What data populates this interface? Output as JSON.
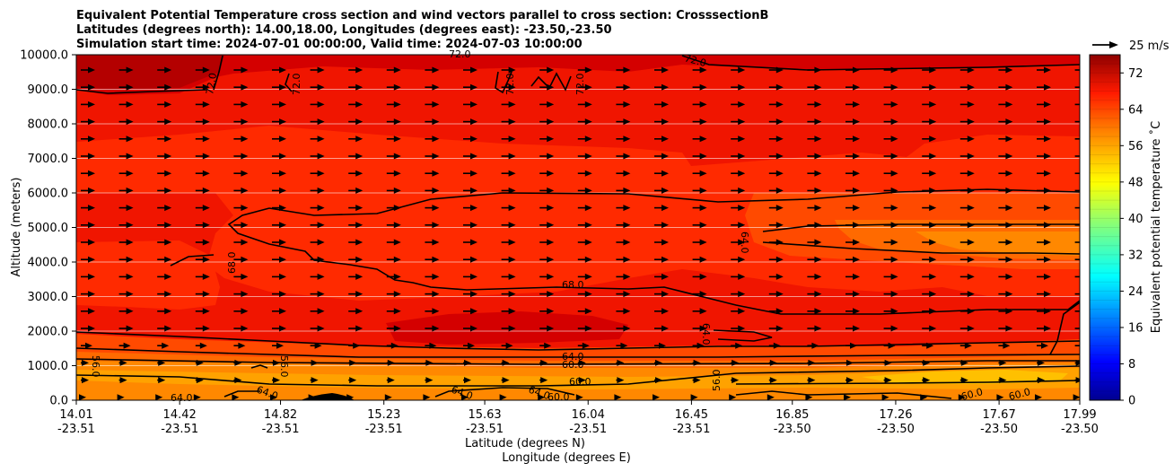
{
  "chart_data": {
    "type": "contourf",
    "title_lines": [
      "Equivalent Potential Temperature cross section and wind vectors parallel to cross section: CrosssectionB",
      "Latitudes (degrees north): 14.00,18.00, Longitudes (degrees east): -23.50,-23.50",
      "Simulation start time: 2024-07-01 00:00:00, Valid time: 2024-07-03 10:00:00"
    ],
    "ylabel": "Altitude (meters)",
    "xlabel_lat": "Latitude (degrees N)",
    "xlabel_lon": "Longitude (degrees E)",
    "ylim": [
      0,
      10000
    ],
    "xlim": [
      14.01,
      17.99
    ],
    "y_ticks": [
      "0.0",
      "1000.0",
      "2000.0",
      "3000.0",
      "4000.0",
      "5000.0",
      "6000.0",
      "7000.0",
      "8000.0",
      "9000.0",
      "10000.0"
    ],
    "x_ticks": [
      {
        "lat": "14.01",
        "lon": "-23.51"
      },
      {
        "lat": "14.42",
        "lon": "-23.51"
      },
      {
        "lat": "14.82",
        "lon": "-23.51"
      },
      {
        "lat": "15.23",
        "lon": "-23.51"
      },
      {
        "lat": "15.63",
        "lon": "-23.51"
      },
      {
        "lat": "16.04",
        "lon": "-23.51"
      },
      {
        "lat": "16.45",
        "lon": "-23.51"
      },
      {
        "lat": "16.85",
        "lon": "-23.50"
      },
      {
        "lat": "17.26",
        "lon": "-23.50"
      },
      {
        "lat": "17.67",
        "lon": "-23.50"
      },
      {
        "lat": "17.99",
        "lon": "-23.50"
      }
    ],
    "colorbar": {
      "label": "Equivalent potential temperature ˚C",
      "min": 0,
      "max": 76,
      "ticks": [
        "0",
        "8",
        "16",
        "24",
        "32",
        "40",
        "48",
        "56",
        "64",
        "72"
      ]
    },
    "quiver_key": "25 m/s",
    "contour_labels": [
      "72.0",
      "72.0",
      "72.0",
      "72.0",
      "72.0",
      "72.0",
      "68.0",
      "68.0",
      "64.0",
      "64.0",
      "64.0",
      "64.0",
      "64.0",
      "64.0",
      "64.0",
      "60.0",
      "60.0",
      "60.0",
      "60.0",
      "56.0",
      "56.0",
      "56.0",
      "60.0"
    ],
    "colors": {
      "theta_76": "#b40000",
      "theta_73": "#d40000",
      "theta_70": "#f01500",
      "theta_68": "#ff2a00",
      "theta_66": "#ff4a00",
      "theta_64": "#ff6a00",
      "theta_62": "#ff8800",
      "theta_60": "#ffa200",
      "theta_58": "#ffc000",
      "terrain": "#000000"
    }
  }
}
